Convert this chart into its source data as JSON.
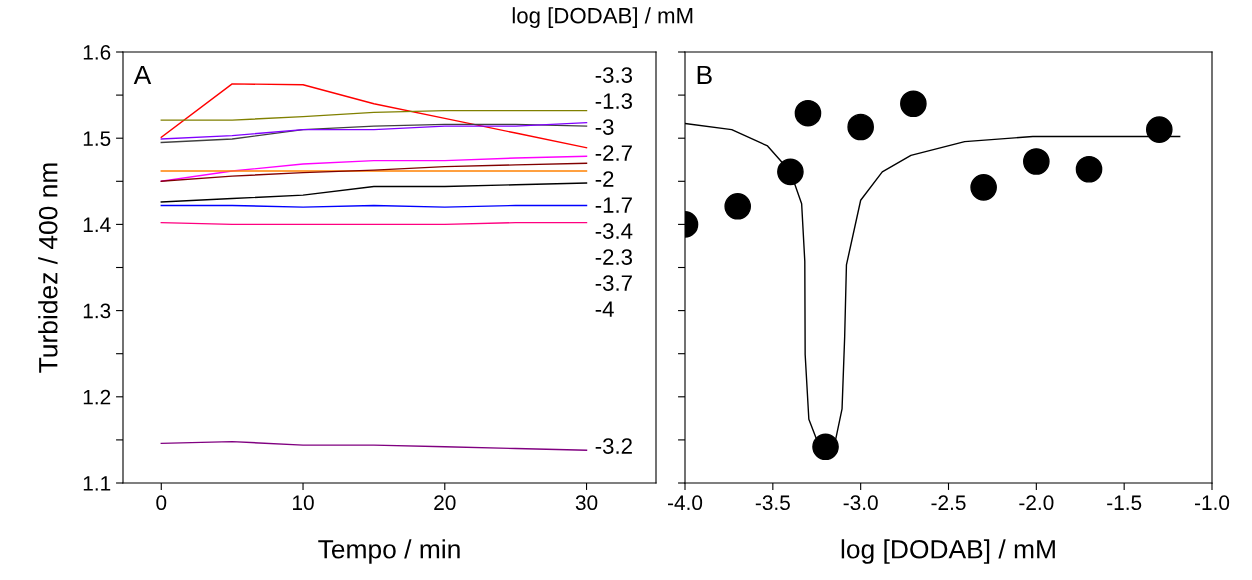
{
  "chart_data": [
    {
      "type": "line",
      "xlabel": "Tempo / min",
      "ylabel": "Turbidez / 400 nm",
      "x": [
        0,
        5,
        10,
        15,
        20,
        25,
        30
      ],
      "xlim": [
        -2.7,
        34.9
      ],
      "ylim": [
        1.1,
        1.6
      ],
      "xticks": [
        0,
        10,
        20,
        30
      ],
      "yticks": [
        1.1,
        {
          "value": 1.15,
          "label": null
        },
        1.2,
        {
          "value": 1.25,
          "label": null
        },
        1.3,
        {
          "value": 1.35,
          "label": null
        },
        1.4,
        {
          "value": 1.45,
          "label": null
        },
        1.5,
        {
          "value": 1.55,
          "label": null
        },
        1.6
      ],
      "annotations": [
        "A",
        "log [DODAB] / mM",
        "-3.3",
        "-1.3",
        "-3",
        "-2.7",
        "-2",
        "-1.7",
        "-3.4",
        "-2.3",
        "-3.7",
        "-4",
        "-3.2"
      ],
      "series": [
        {
          "color": "#ff0000",
          "values": [
            1.501,
            1.563,
            1.562,
            1.54,
            1.523,
            1.506,
            1.489
          ]
        },
        {
          "color": "#808000",
          "values": [
            1.521,
            1.521,
            1.525,
            1.53,
            1.532,
            1.532,
            1.532
          ]
        },
        {
          "color": "#404040",
          "values": [
            1.495,
            1.499,
            1.51,
            1.514,
            1.516,
            1.516,
            1.514
          ]
        },
        {
          "color": "#8000ff",
          "values": [
            1.499,
            1.503,
            1.51,
            1.51,
            1.514,
            1.514,
            1.518
          ]
        },
        {
          "color": "#ff00ff",
          "values": [
            1.45,
            1.462,
            1.47,
            1.474,
            1.474,
            1.477,
            1.479
          ]
        },
        {
          "color": "#ff8000",
          "values": [
            1.462,
            1.462,
            1.462,
            1.462,
            1.462,
            1.462,
            1.462
          ]
        },
        {
          "color": "#800000",
          "values": [
            1.45,
            1.456,
            1.46,
            1.463,
            1.467,
            1.469,
            1.471
          ]
        },
        {
          "color": "#000000",
          "values": [
            1.426,
            1.43,
            1.434,
            1.444,
            1.444,
            1.446,
            1.448
          ]
        },
        {
          "color": "#0000ff",
          "values": [
            1.422,
            1.422,
            1.42,
            1.422,
            1.42,
            1.422,
            1.422
          ]
        },
        {
          "color": "#ff0080",
          "values": [
            1.402,
            1.4,
            1.4,
            1.4,
            1.4,
            1.402,
            1.402
          ]
        },
        {
          "color": "#800080",
          "values": [
            1.146,
            1.148,
            1.144,
            1.144,
            1.142,
            1.14,
            1.138
          ]
        }
      ]
    },
    {
      "type": "scatter",
      "xlabel": "log [DODAB] / mM",
      "tick_labels": "x",
      "xlim": [
        -4.0,
        -1.0
      ],
      "ylim": [
        1.1,
        1.6
      ],
      "xticks": [
        {
          "value": -4.0,
          "label": "-4.0"
        },
        {
          "value": -3.5,
          "label": "-3.5"
        },
        {
          "value": -3.0,
          "label": "-3.0"
        },
        {
          "value": -2.5,
          "label": "-2.5"
        },
        {
          "value": -2.0,
          "label": "-2.0"
        },
        {
          "value": -1.5,
          "label": "-1.5"
        },
        {
          "value": -1.0,
          "label": "-1.0"
        }
      ],
      "yticks": [
        {
          "value": 1.1,
          "label": null
        },
        {
          "value": 1.15,
          "label": null
        },
        {
          "value": 1.2,
          "label": null
        },
        {
          "value": 1.25,
          "label": null
        },
        {
          "value": 1.3,
          "label": null
        },
        {
          "value": 1.35,
          "label": null
        },
        {
          "value": 1.4,
          "label": null
        },
        {
          "value": 1.45,
          "label": null
        },
        {
          "value": 1.5,
          "label": null
        },
        {
          "value": 1.55,
          "label": null
        },
        {
          "value": 1.6,
          "label": null
        }
      ],
      "annotations": [
        "B"
      ],
      "series": [
        {
          "color": "#000000",
          "marker": "circle",
          "x": [
            -4.0,
            -3.7,
            -3.4,
            -3.3,
            -3.2,
            -3.0,
            -2.7,
            -2.3,
            -2.0,
            -1.7,
            -1.3
          ],
          "values": [
            1.4,
            1.421,
            1.461,
            1.529,
            1.142,
            1.513,
            1.54,
            1.443,
            1.473,
            1.464,
            1.51
          ]
        },
        {
          "type": "line",
          "marker": "none",
          "color": "#000000",
          "x": [
            -4.0,
            -3.734,
            -3.53,
            -3.4,
            -3.336,
            -3.318,
            -3.316,
            -3.295,
            -3.244,
            -3.198,
            -3.142,
            -3.106,
            -3.091,
            -3.081,
            -3.0,
            -2.877,
            -2.714,
            -2.408,
            -2.02,
            -1.184
          ],
          "values": [
            1.517,
            1.51,
            1.491,
            1.461,
            1.424,
            1.357,
            1.249,
            1.174,
            1.147,
            1.141,
            1.151,
            1.186,
            1.27,
            1.353,
            1.428,
            1.461,
            1.48,
            1.496,
            1.502,
            1.502
          ]
        }
      ]
    }
  ]
}
